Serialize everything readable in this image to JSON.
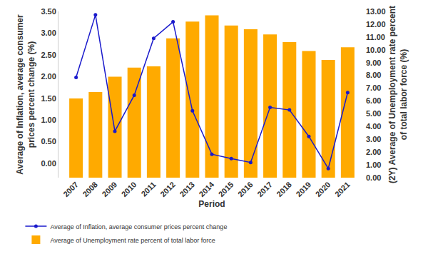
{
  "chart_data": {
    "type": "bar",
    "x_label": "Period",
    "y_label": [
      "Average of Inflation, average consumer",
      "prices percent change (%)"
    ],
    "y2_label": [
      "(2Y) Average of Unemployment rate percent",
      "of total labor force (%)"
    ],
    "categories": [
      "2007",
      "2008",
      "2009",
      "2010",
      "2011",
      "2012",
      "2013",
      "2014",
      "2015",
      "2016",
      "2017",
      "2018",
      "2019",
      "2020",
      "2021"
    ],
    "series": [
      {
        "name": "Average of Unemployment rate percent of total labor force",
        "type": "bar",
        "axis": "y2",
        "color": "#ffaa00",
        "values": [
          6.2,
          6.7,
          7.9,
          8.6,
          8.7,
          10.9,
          12.2,
          12.7,
          11.9,
          11.6,
          11.2,
          10.6,
          9.9,
          9.2,
          10.2
        ]
      },
      {
        "name": "Average of Inflation, average consumer prices percent change",
        "type": "line",
        "color": "#1a1acc",
        "marker": "circle",
        "values": [
          1.98,
          3.42,
          0.74,
          1.57,
          2.88,
          3.26,
          1.21,
          0.21,
          0.11,
          0.02,
          1.29,
          1.23,
          0.62,
          -0.12,
          1.63
        ]
      }
    ],
    "ylim": [
      -0.33,
      3.5
    ],
    "yticks": [
      {
        "value": 0,
        "label": "0.00"
      },
      {
        "value": 0.5,
        "label": "0.50"
      },
      {
        "value": 1,
        "label": "1.00"
      },
      {
        "value": 1.5,
        "label": "1.50"
      },
      {
        "value": 2,
        "label": "2.00"
      },
      {
        "value": 2.5,
        "label": "2.50"
      },
      {
        "value": 3,
        "label": "3.00"
      },
      {
        "value": 3.5,
        "label": "3.50"
      }
    ],
    "y2lim": [
      0,
      13
    ],
    "y2ticks": [
      {
        "value": 0,
        "label": "0.00"
      },
      {
        "value": 1,
        "label": "1.00"
      },
      {
        "value": 2,
        "label": "2.00"
      },
      {
        "value": 3,
        "label": "3.00"
      },
      {
        "value": 4,
        "label": "4.00"
      },
      {
        "value": 5,
        "label": "5.00"
      },
      {
        "value": 6,
        "label": "6.00"
      },
      {
        "value": 7,
        "label": "7.00"
      },
      {
        "value": 8,
        "label": "8.00"
      },
      {
        "value": 9,
        "label": "9.00"
      },
      {
        "value": 10,
        "label": "10.00"
      },
      {
        "value": 11,
        "label": "11.00"
      },
      {
        "value": 12,
        "label": "12.00"
      },
      {
        "value": 13,
        "label": "13.00"
      }
    ],
    "grid": false,
    "legend": "bottom"
  }
}
